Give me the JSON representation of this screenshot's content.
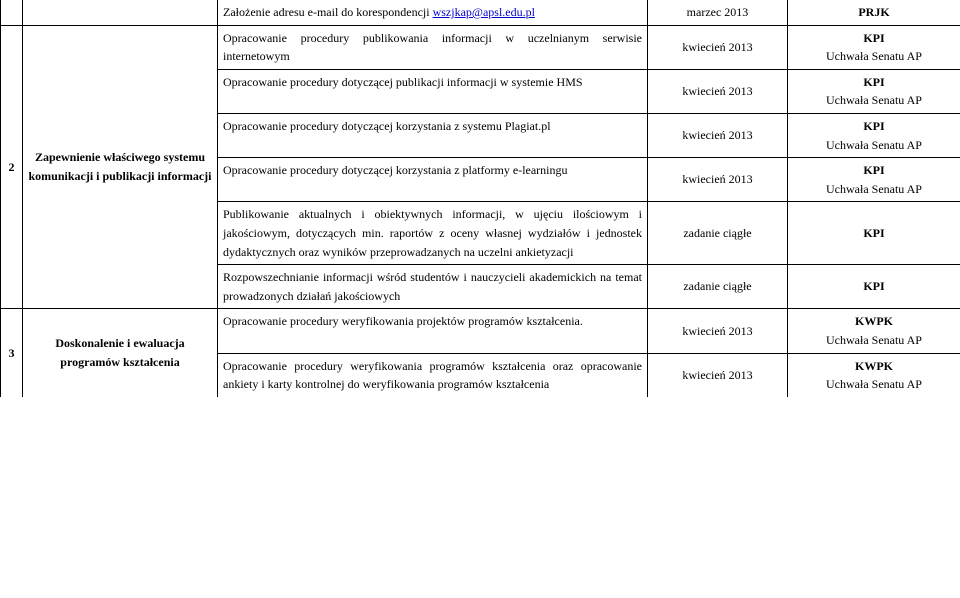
{
  "rows": [
    {
      "group_num": null,
      "group_label": null,
      "desc": "Założenie adresu e-mail do korespondencji ",
      "link": "wszjkap@apsl.edu.pl",
      "date": "marzec 2013",
      "resp": "PRJK",
      "top_open": true,
      "bottom_open": true
    },
    {
      "group_num": "2",
      "group_label": "Zapewnienie właściwego systemu komunikacji i publikacji informacji",
      "rowspan": 6,
      "desc": "Opracowanie procedury publikowania informacji w uczelnianym serwisie internetowym",
      "date": "kwiecień 2013",
      "resp": "KPI\nUchwała Senatu AP",
      "top_open": false
    },
    {
      "desc": "Opracowanie procedury dotyczącej publikacji informacji w systemie HMS",
      "date": "kwiecień 2013",
      "resp": "KPI\nUchwała Senatu AP"
    },
    {
      "desc": "Opracowanie procedury dotyczącej korzystania z systemu Plagiat.pl",
      "date": "kwiecień 2013",
      "resp": "KPI\nUchwała Senatu AP"
    },
    {
      "desc": "Opracowanie procedury dotyczącej korzystania z platformy e-learningu",
      "date": "kwiecień 2013",
      "resp": "KPI\nUchwała Senatu AP"
    },
    {
      "desc": "Publikowanie aktualnych i obiektywnych informacji, w ujęciu ilościowym i jakościowym, dotyczących min. raportów z oceny własnej wydziałów i jednostek dydaktycznych oraz wyników przeprowadzanych na uczelni ankietyzacji",
      "date": "zadanie ciągłe",
      "resp": "KPI"
    },
    {
      "desc": "Rozpowszechnianie informacji wśród studentów i nauczycieli akademickich na temat prowadzonych działań jakościowych",
      "date": "zadanie ciągłe",
      "resp": "KPI"
    },
    {
      "group_num": "3",
      "group_label": "Doskonalenie i ewaluacja programów kształcenia",
      "rowspan": 2,
      "desc": "Opracowanie procedury weryfikowania projektów programów kształcenia.",
      "date": "kwiecień 2013",
      "resp": "KWPK\nUchwała Senatu AP",
      "num_bottom_open": true,
      "label_bottom_open": true
    },
    {
      "desc": "Opracowanie procedury weryfikowania programów kształcenia oraz opracowanie ankiety i karty kontrolnej do weryfikowania programów kształcenia",
      "date": "kwiecień 2013",
      "resp": "KWPK\nUchwała Senatu AP",
      "bottom_open": true
    }
  ],
  "resp_middle_rows": [
    4,
    5,
    6
  ]
}
